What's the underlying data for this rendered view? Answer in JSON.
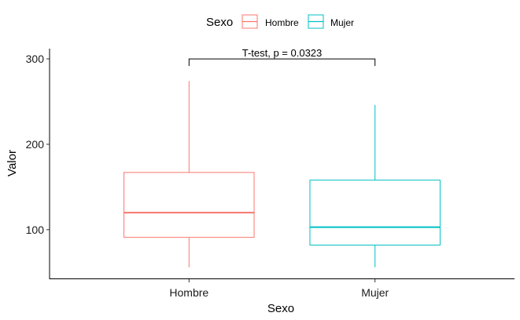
{
  "chart_data": {
    "type": "box",
    "xlabel": "Sexo",
    "ylabel": "Valor",
    "ylim": [
      42,
      312
    ],
    "yticks": [
      100,
      200,
      300
    ],
    "categories": [
      "Hombre",
      "Mujer"
    ],
    "legend": {
      "title": "Sexo",
      "position": "top",
      "entries": [
        "Hombre",
        "Mujer"
      ]
    },
    "series": [
      {
        "name": "Hombre",
        "color": "#F8766D",
        "min": 56,
        "q1": 91,
        "median": 120,
        "q3": 167,
        "max": 274
      },
      {
        "name": "Mujer",
        "color": "#00BFC4",
        "min": 56,
        "q1": 82,
        "median": 103,
        "q3": 158,
        "max": 246
      }
    ],
    "annotation": {
      "text": "T-test, p = 0.0323",
      "y": 300
    },
    "grid": false
  }
}
